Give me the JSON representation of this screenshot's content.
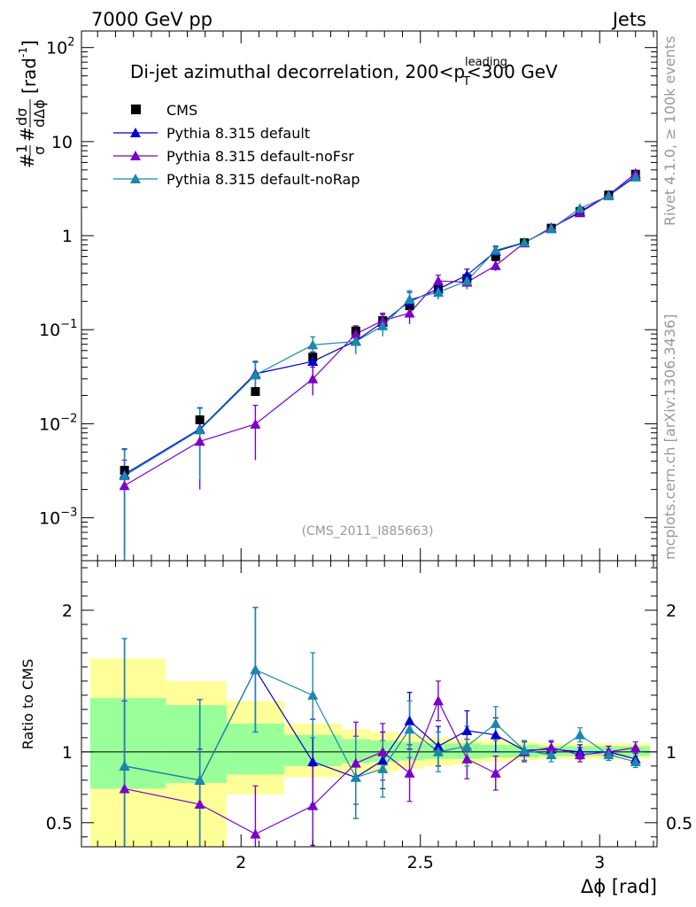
{
  "header": {
    "energy": "7000 GeV pp",
    "process": "Jets"
  },
  "side": {
    "rivet": "Rivet 4.1.0, ≥ 100k events",
    "mcplots": "mcplots.cern.ch [arXiv:1306.3436]"
  },
  "colors": {
    "cms": "#000000",
    "default": "#0000cc",
    "noFsr": "#7b00c8",
    "noRap": "#1a88aa",
    "band_outer": "#ffff99",
    "band_inner": "#99ff99"
  },
  "chart_data": [
    {
      "type": "scatter",
      "title_main": "Di-jet azimuthal decorrelation, 200<p",
      "title_sup": "leading",
      "title_sub": "T",
      "title_tail": "<300 GeV",
      "tag": "(CMS_2011_I885663)",
      "yscale": "log",
      "ylim": [
        0.00035,
        150
      ],
      "xlim": [
        1.555,
        3.16
      ],
      "y_ticklabels": [
        {
          "v": 0.001,
          "base": "10",
          "exp": "−3"
        },
        {
          "v": 0.01,
          "base": "10",
          "exp": "−2"
        },
        {
          "v": 0.1,
          "base": "10",
          "exp": "−1"
        },
        {
          "v": 1,
          "base": "1",
          "exp": ""
        },
        {
          "v": 10,
          "base": "10",
          "exp": ""
        },
        {
          "v": 100,
          "base": "10",
          "exp": "2"
        }
      ],
      "ylabel": {
        "pre": "#",
        "num1": "1",
        "den1": "σ",
        "mid": "#",
        "num2": "dσ",
        "den2": "dΔϕ",
        "unit": "[rad",
        "unit_sup": "-1",
        "unit_end": "]"
      },
      "legend": [
        "CMS",
        "Pythia 8.315 default",
        "Pythia 8.315 default-noFsr",
        "Pythia 8.315 default-noRap"
      ],
      "x": [
        1.675,
        1.885,
        2.04,
        2.2,
        2.32,
        2.395,
        2.47,
        2.55,
        2.63,
        2.71,
        2.79,
        2.865,
        2.945,
        3.025,
        3.1
      ],
      "x_bins": [
        [
          1.57,
          1.79
        ],
        [
          1.79,
          1.96
        ],
        [
          1.96,
          2.12
        ],
        [
          2.12,
          2.28
        ],
        [
          2.28,
          2.36
        ],
        [
          2.36,
          2.44
        ],
        [
          2.44,
          2.51
        ],
        [
          2.51,
          2.59
        ],
        [
          2.59,
          2.67
        ],
        [
          2.67,
          2.75
        ],
        [
          2.75,
          2.83
        ],
        [
          2.83,
          2.9
        ],
        [
          2.9,
          2.98
        ],
        [
          2.98,
          3.06
        ],
        [
          3.06,
          3.14
        ]
      ],
      "series": [
        {
          "name": "CMS",
          "marker": "square",
          "values": [
            0.0032,
            0.011,
            0.022,
            0.051,
            0.097,
            0.125,
            0.18,
            0.27,
            0.35,
            0.6,
            0.84,
            1.2,
            1.8,
            2.7,
            4.5
          ]
        },
        {
          "name": "Pythia 8.315 default",
          "marker": "triangle",
          "values": [
            0.0029,
            0.0088,
            0.034,
            0.046,
            0.076,
            0.12,
            0.2,
            0.27,
            0.38,
            0.68,
            0.84,
            1.2,
            1.8,
            2.7,
            4.3
          ],
          "err": [
            0.0025,
            0.006,
            0.012,
            0.012,
            0.02,
            0.025,
            0.05,
            0.05,
            0.06,
            0.08,
            0.05,
            0.06,
            0.08,
            0.1,
            0.15
          ]
        },
        {
          "name": "Pythia 8.315 default-noFsr",
          "marker": "triangle",
          "values": [
            0.0022,
            0.0065,
            0.0099,
            0.03,
            0.09,
            0.125,
            0.15,
            0.33,
            0.32,
            0.48,
            0.84,
            1.22,
            1.75,
            2.7,
            4.6
          ],
          "err": [
            0.0019,
            0.0045,
            0.0058,
            0.01,
            0.02,
            0.025,
            0.035,
            0.05,
            0.05,
            0.06,
            0.05,
            0.06,
            0.08,
            0.1,
            0.15
          ]
        },
        {
          "name": "Pythia 8.315 default-noRap",
          "marker": "triangle",
          "values": [
            0.0028,
            0.0086,
            0.033,
            0.069,
            0.075,
            0.11,
            0.21,
            0.25,
            0.33,
            0.7,
            0.85,
            1.18,
            1.95,
            2.65,
            4.2
          ],
          "err": [
            0.0025,
            0.006,
            0.012,
            0.015,
            0.02,
            0.025,
            0.05,
            0.04,
            0.06,
            0.08,
            0.05,
            0.06,
            0.08,
            0.1,
            0.15
          ]
        }
      ]
    },
    {
      "type": "scatter",
      "ylabel": "Ratio to CMS",
      "xlabel": "Δϕ [rad]",
      "ylim": [
        0.33,
        2.35
      ],
      "xlim": [
        1.555,
        3.16
      ],
      "y_ticklabels": [
        "0.5",
        "1",
        "2"
      ],
      "y_tickvalues": [
        0.5,
        1,
        2
      ],
      "x_ticklabels": [
        "2",
        "2.5",
        "3"
      ],
      "x_tickvalues": [
        2,
        2.5,
        3
      ],
      "x": [
        1.675,
        1.885,
        2.04,
        2.2,
        2.32,
        2.395,
        2.47,
        2.55,
        2.63,
        2.71,
        2.79,
        2.865,
        2.945,
        3.025,
        3.1
      ],
      "band_inner": [
        [
          0.74,
          1.38
        ],
        [
          0.78,
          1.33
        ],
        [
          0.84,
          1.2
        ],
        [
          0.9,
          1.12
        ],
        [
          0.92,
          1.09
        ],
        [
          0.93,
          1.08
        ],
        [
          0.94,
          1.07
        ],
        [
          0.95,
          1.06
        ],
        [
          0.95,
          1.06
        ],
        [
          0.96,
          1.05
        ],
        [
          0.96,
          1.05
        ],
        [
          0.97,
          1.04
        ],
        [
          0.97,
          1.04
        ],
        [
          0.97,
          1.04
        ],
        [
          0.97,
          1.04
        ]
      ],
      "band_outer": [
        [
          0.3,
          1.66
        ],
        [
          0.3,
          1.5
        ],
        [
          0.7,
          1.36
        ],
        [
          0.82,
          1.2
        ],
        [
          0.85,
          1.16
        ],
        [
          0.86,
          1.14
        ],
        [
          0.88,
          1.12
        ],
        [
          0.9,
          1.1
        ],
        [
          0.91,
          1.09
        ],
        [
          0.93,
          1.08
        ],
        [
          0.94,
          1.07
        ],
        [
          0.95,
          1.06
        ],
        [
          0.95,
          1.06
        ],
        [
          0.95,
          1.06
        ],
        [
          0.95,
          1.06
        ]
      ],
      "series": [
        {
          "name": "Pythia 8.315 default",
          "values": [
            0.9,
            0.8,
            1.58,
            0.93,
            0.82,
            0.94,
            1.22,
            1.04,
            1.15,
            1.12,
            1.01,
            1.02,
            1.0,
            1.0,
            0.95
          ],
          "err": [
            0.9,
            0.57,
            0.44,
            0.3,
            0.29,
            0.2,
            0.2,
            0.14,
            0.14,
            0.12,
            0.07,
            0.05,
            0.05,
            0.04,
            0.04
          ]
        },
        {
          "name": "Pythia 8.315 default-noFsr",
          "values": [
            0.74,
            0.63,
            0.42,
            0.62,
            0.92,
            1.0,
            0.85,
            1.36,
            0.95,
            0.85,
            1.0,
            1.03,
            0.98,
            1.0,
            1.03
          ],
          "err": [
            0.62,
            0.39,
            0.34,
            0.28,
            0.29,
            0.2,
            0.2,
            0.14,
            0.14,
            0.12,
            0.07,
            0.05,
            0.05,
            0.04,
            0.04
          ]
        },
        {
          "name": "Pythia 8.315 default-noRap",
          "values": [
            0.9,
            0.8,
            1.58,
            1.4,
            0.82,
            0.88,
            1.16,
            1.0,
            1.04,
            1.2,
            1.01,
            0.98,
            1.12,
            0.98,
            0.93
          ],
          "err": [
            0.9,
            0.57,
            0.44,
            0.3,
            0.29,
            0.2,
            0.2,
            0.14,
            0.14,
            0.12,
            0.07,
            0.05,
            0.05,
            0.04,
            0.04
          ]
        }
      ]
    }
  ]
}
